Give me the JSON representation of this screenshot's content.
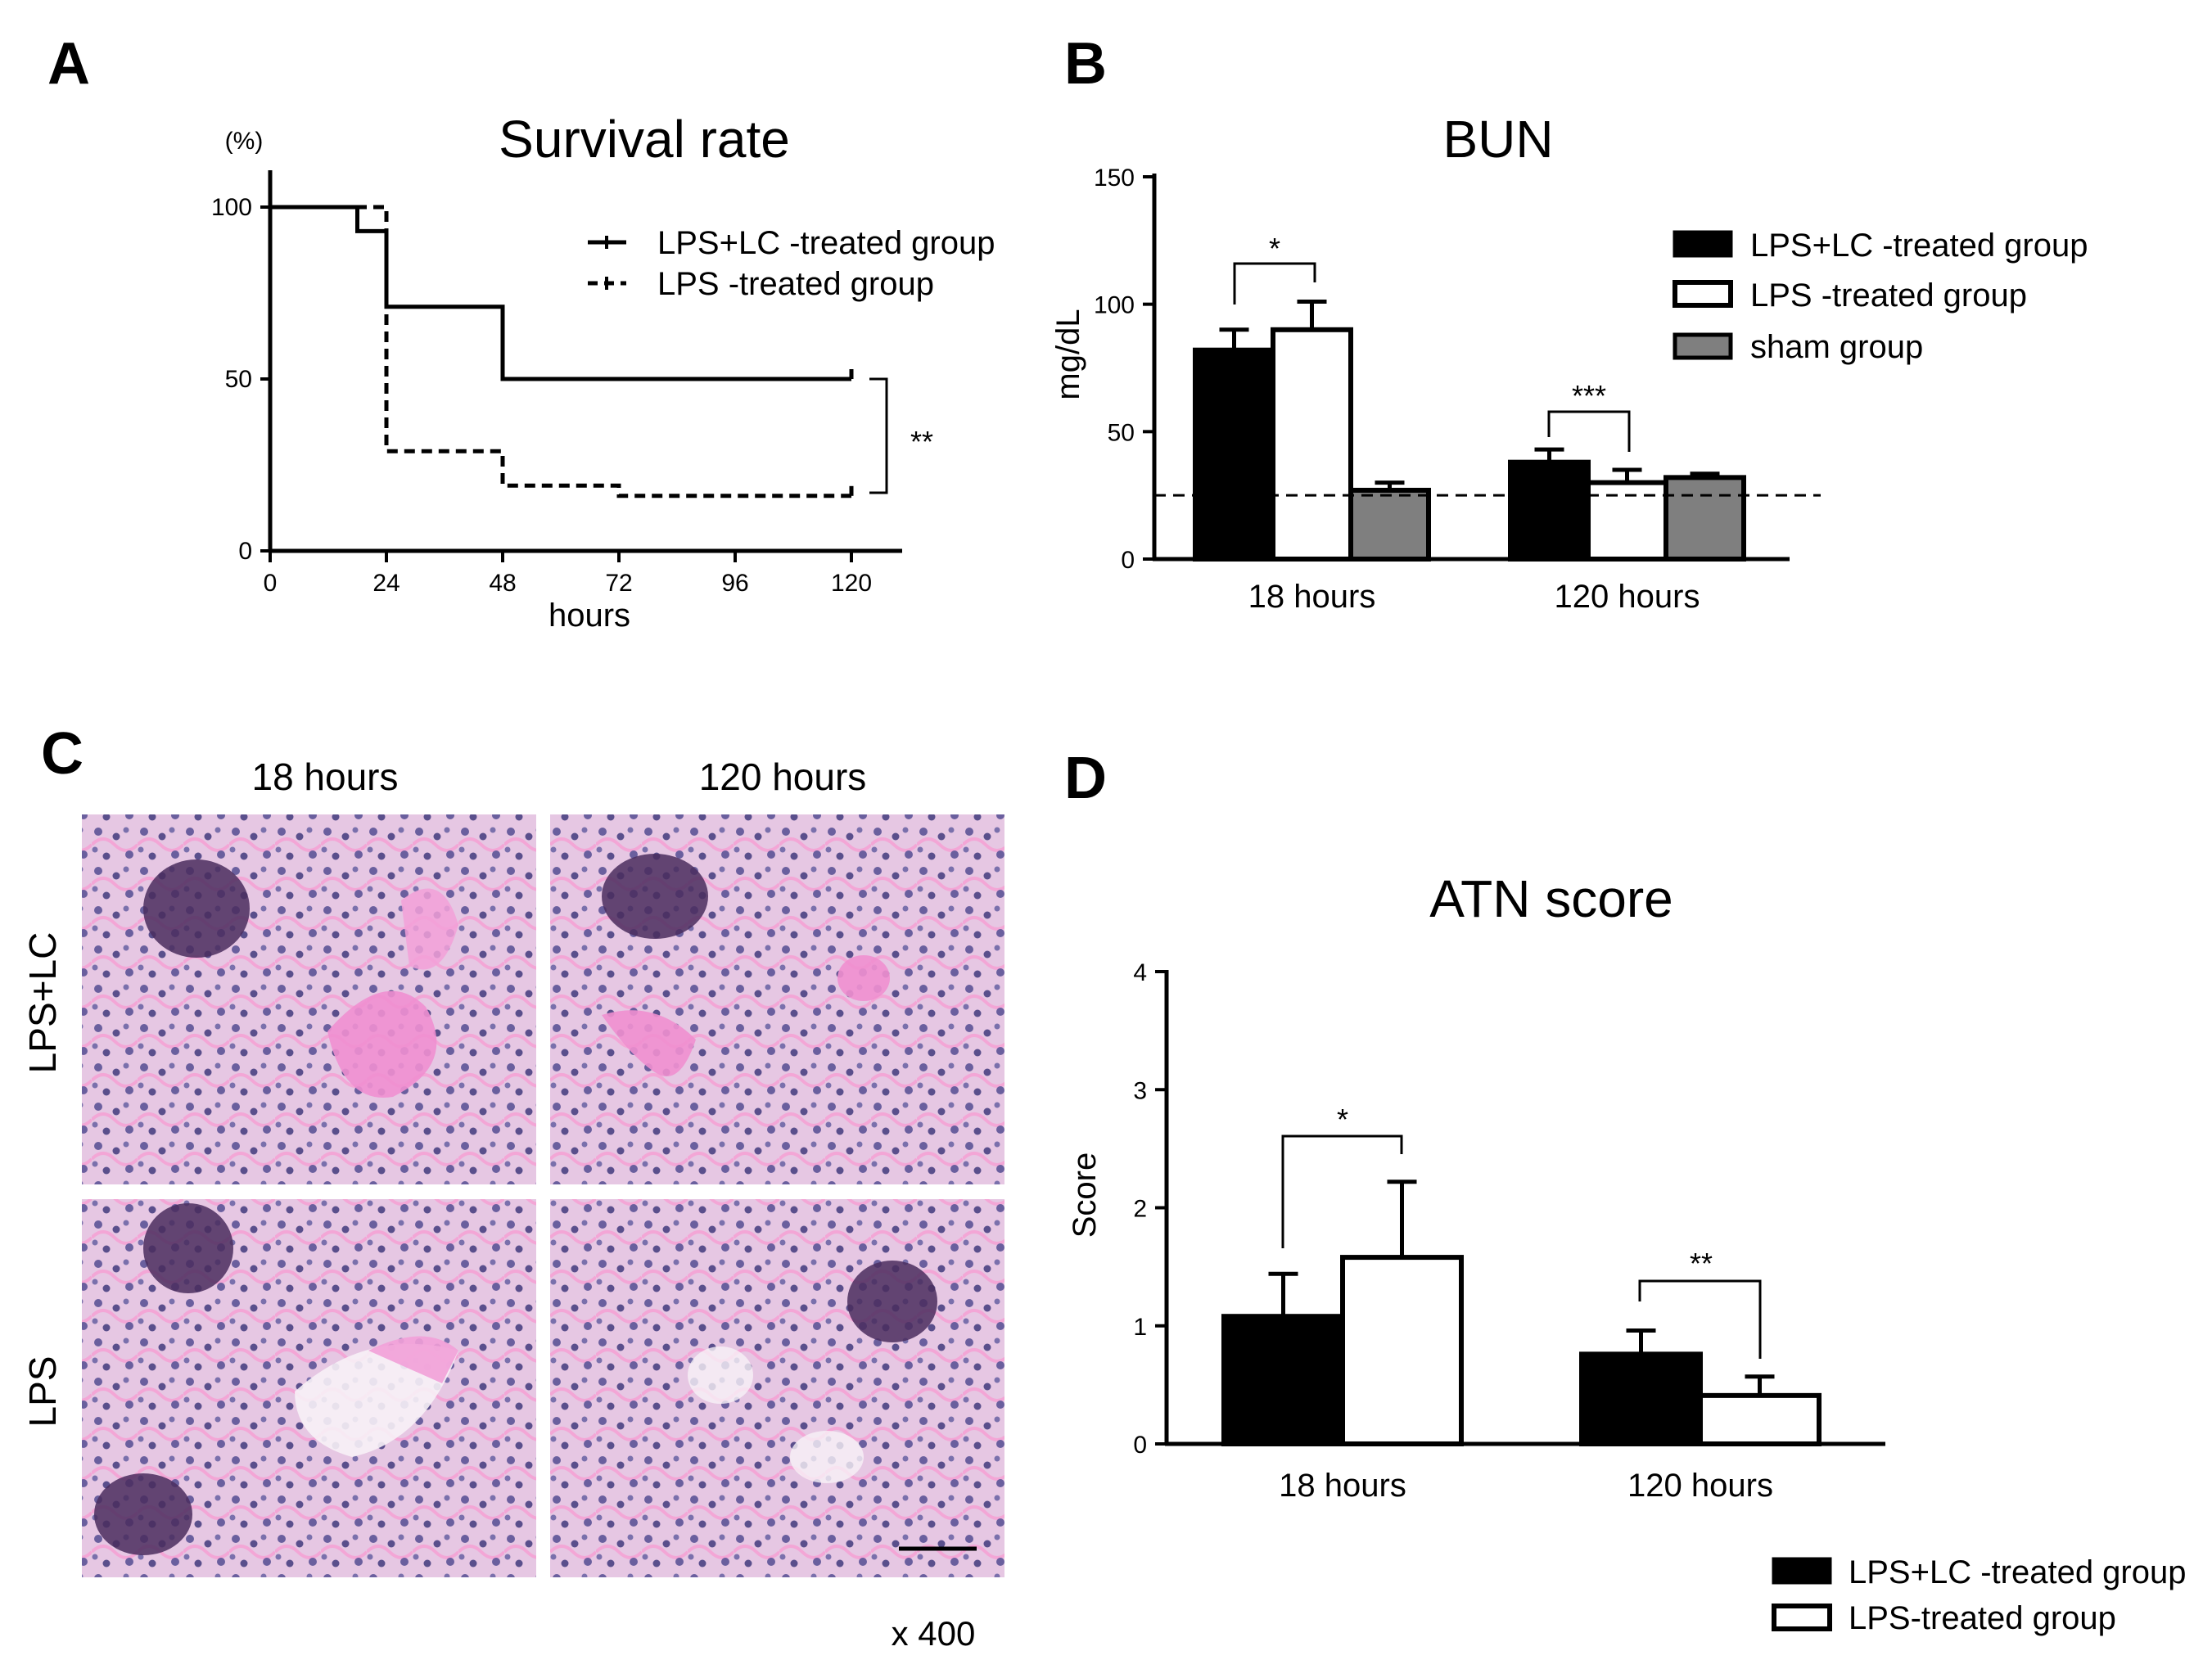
{
  "panels": {
    "A": "A",
    "B": "B",
    "C": "C",
    "D": "D"
  },
  "micrograph": {
    "columns": [
      "18 hours",
      "120 hours"
    ],
    "rows": [
      "LPS+LC",
      "LPS"
    ],
    "magnification": "x 400",
    "colors": {
      "tissue": "#e8c8e4",
      "eosin": "#ef8fcf",
      "nuclei": "#5a4f8c",
      "glomerulus": "#3a1f4a"
    }
  },
  "chart_data": [
    {
      "id": "A",
      "type": "line",
      "title": "Survival rate",
      "xlabel": "hours",
      "ylabel": "(%)",
      "xlim": [
        0,
        120
      ],
      "ylim": [
        0,
        100
      ],
      "xticks": [
        "0",
        "24",
        "48",
        "72",
        "96",
        "120"
      ],
      "yticks": [
        "0",
        "50",
        "100"
      ],
      "legend_position": "top-right",
      "significance": "**",
      "series": [
        {
          "name": "LPS+LC -treated group",
          "style": "solid",
          "x": [
            0,
            18,
            18,
            24,
            24,
            48,
            48,
            120
          ],
          "y": [
            100,
            100,
            93,
            93,
            71,
            71,
            50,
            50
          ]
        },
        {
          "name": "LPS -treated group",
          "style": "dashed",
          "x": [
            0,
            24,
            24,
            48,
            48,
            72,
            72,
            120
          ],
          "y": [
            100,
            100,
            29,
            29,
            19,
            19,
            16,
            16
          ]
        }
      ]
    },
    {
      "id": "B",
      "type": "bar",
      "title": "BUN",
      "ylabel": "mg/dL",
      "ylim": [
        0,
        150
      ],
      "yticks": [
        "0",
        "50",
        "100",
        "150"
      ],
      "categories": [
        "18 hours",
        "120 hours"
      ],
      "reference_line": 25,
      "legend_position": "top-right",
      "series": [
        {
          "name": "LPS+LC -treated group",
          "color": "#000000",
          "values": [
            82,
            38
          ],
          "errors": [
            8,
            5
          ]
        },
        {
          "name": "LPS -treated group",
          "color": "#ffffff",
          "values": [
            90,
            30
          ],
          "errors": [
            11,
            5
          ]
        },
        {
          "name": "sham group",
          "color": "#7f7f7f",
          "values": [
            27,
            32
          ],
          "errors": [
            3,
            1.5
          ]
        }
      ],
      "significance": [
        "*",
        "***"
      ]
    },
    {
      "id": "D",
      "type": "bar",
      "title": "ATN score",
      "ylabel": "Score",
      "ylim": [
        0,
        4
      ],
      "yticks": [
        "0",
        "1",
        "2",
        "3",
        "4"
      ],
      "categories": [
        "18 hours",
        "120 hours"
      ],
      "legend_position": "bottom-right",
      "series": [
        {
          "name": "LPS+LC -treated group",
          "color": "#000000",
          "values": [
            1.08,
            0.76
          ],
          "errors": [
            0.36,
            0.2
          ]
        },
        {
          "name": "LPS-treated group",
          "color": "#ffffff",
          "values": [
            1.58,
            0.41
          ],
          "errors": [
            0.64,
            0.16
          ]
        }
      ],
      "significance": [
        "*",
        "**"
      ]
    }
  ]
}
